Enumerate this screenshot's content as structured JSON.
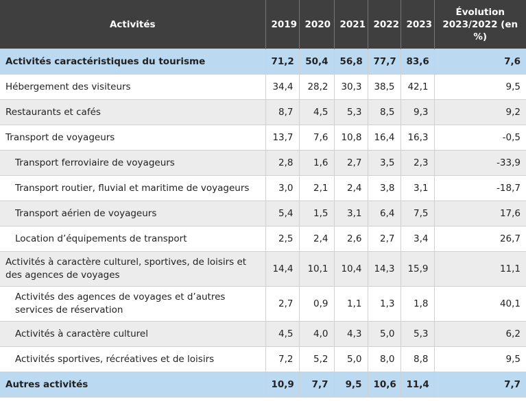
{
  "header": {
    "activity": "Activités",
    "years": [
      "2019",
      "2020",
      "2021",
      "2022",
      "2023"
    ],
    "evolution": "Évolution 2023/2022 (en %)"
  },
  "rows": [
    {
      "label": "Activités caractéristiques du tourisme",
      "values": [
        "71,2",
        "50,4",
        "56,8",
        "77,7",
        "83,6"
      ],
      "evolution": "7,6",
      "style": "total",
      "indent": false
    },
    {
      "label": "Hébergement des visiteurs",
      "values": [
        "34,4",
        "28,2",
        "30,3",
        "38,5",
        "42,1"
      ],
      "evolution": "9,5",
      "style": "plain",
      "indent": false
    },
    {
      "label": "Restaurants et cafés",
      "values": [
        "8,7",
        "4,5",
        "5,3",
        "8,5",
        "9,3"
      ],
      "evolution": "9,2",
      "style": "alt",
      "indent": false
    },
    {
      "label": "Transport de voyageurs",
      "values": [
        "13,7",
        "7,6",
        "10,8",
        "16,4",
        "16,3"
      ],
      "evolution": "-0,5",
      "style": "plain",
      "indent": false
    },
    {
      "label": "Transport ferroviaire de voyageurs",
      "values": [
        "2,8",
        "1,6",
        "2,7",
        "3,5",
        "2,3"
      ],
      "evolution": "-33,9",
      "style": "alt",
      "indent": true
    },
    {
      "label": "Transport routier, fluvial et maritime de voyageurs",
      "values": [
        "3,0",
        "2,1",
        "2,4",
        "3,8",
        "3,1"
      ],
      "evolution": "-18,7",
      "style": "plain",
      "indent": true
    },
    {
      "label": "Transport aérien de voyageurs",
      "values": [
        "5,4",
        "1,5",
        "3,1",
        "6,4",
        "7,5"
      ],
      "evolution": "17,6",
      "style": "alt",
      "indent": true
    },
    {
      "label": "Location d’équipements de transport",
      "values": [
        "2,5",
        "2,4",
        "2,6",
        "2,7",
        "3,4"
      ],
      "evolution": "26,7",
      "style": "plain",
      "indent": true
    },
    {
      "label": "Activités à caractère culturel, sportives, de loisirs et des agences de voyages",
      "values": [
        "14,4",
        "10,1",
        "10,4",
        "14,3",
        "15,9"
      ],
      "evolution": "11,1",
      "style": "alt",
      "indent": false
    },
    {
      "label": "Activités des agences de voyages et d’autres services de réservation",
      "values": [
        "2,7",
        "0,9",
        "1,1",
        "1,3",
        "1,8"
      ],
      "evolution": "40,1",
      "style": "plain",
      "indent": true
    },
    {
      "label": "Activités à caractère culturel",
      "values": [
        "4,5",
        "4,0",
        "4,3",
        "5,0",
        "5,3"
      ],
      "evolution": "6,2",
      "style": "alt",
      "indent": true
    },
    {
      "label": "Activités sportives, récréatives et de loisirs",
      "values": [
        "7,2",
        "5,2",
        "5,0",
        "8,0",
        "8,8"
      ],
      "evolution": "9,5",
      "style": "plain",
      "indent": true
    },
    {
      "label": "Autres activités",
      "values": [
        "10,9",
        "7,7",
        "9,5",
        "10,6",
        "11,4"
      ],
      "evolution": "7,7",
      "style": "total",
      "indent": false
    }
  ]
}
